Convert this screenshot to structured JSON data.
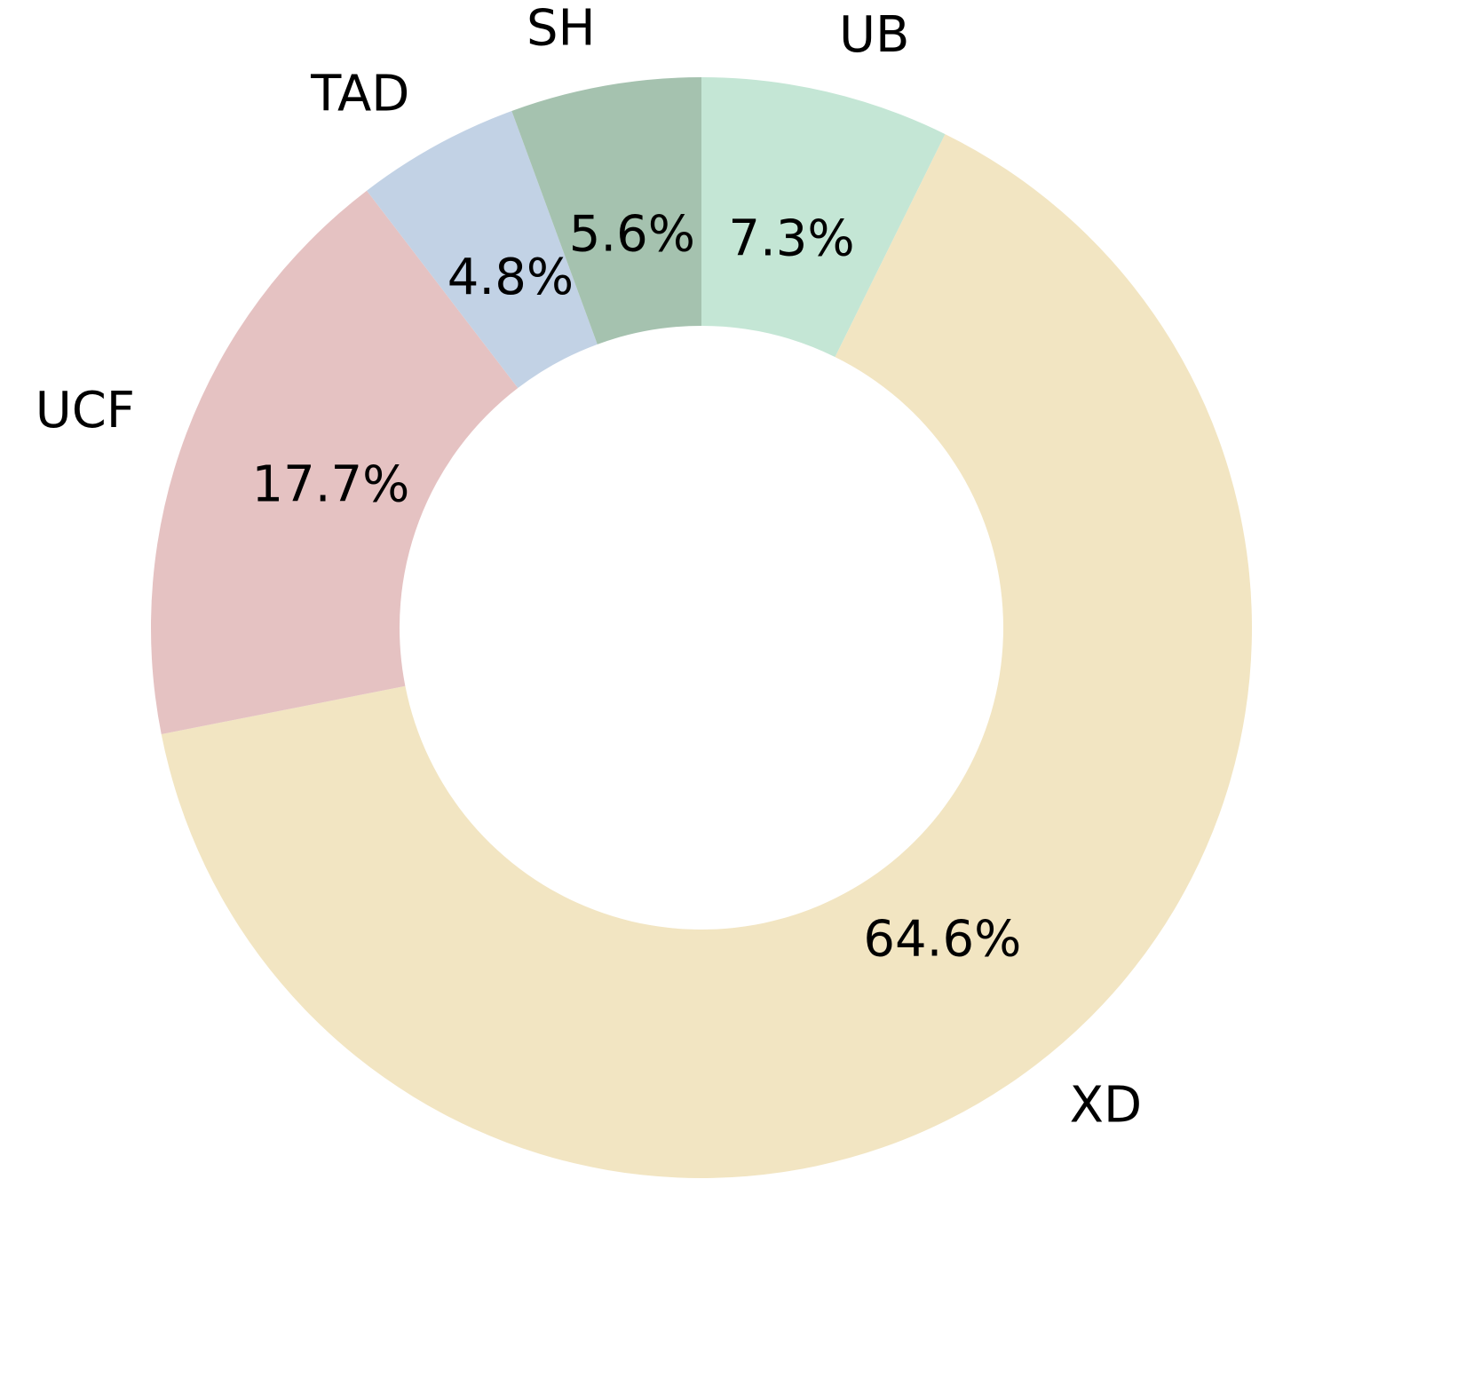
{
  "chart_data": {
    "type": "donut",
    "categories": [
      "UB",
      "XD",
      "UCF",
      "TAD",
      "SH"
    ],
    "values": [
      7.3,
      64.6,
      17.7,
      4.8,
      5.6
    ],
    "value_labels": [
      "7.3%",
      "64.6%",
      "17.7%",
      "4.8%",
      "5.6%"
    ],
    "colors": [
      "#c4e6d5",
      "#f2e5c2",
      "#e5c2c2",
      "#c2d2e5",
      "#a5c2af"
    ]
  }
}
